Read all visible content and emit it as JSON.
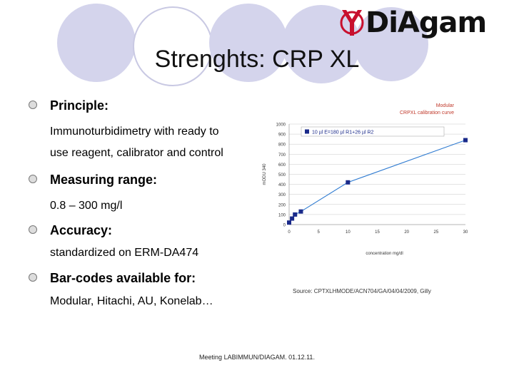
{
  "logo": {
    "text": "DiAgam",
    "icon": "diagam-y-logo-icon",
    "accent": "#c8102e"
  },
  "slide_title": "Strenghts: CRP XL",
  "bullets": [
    {
      "heading": "Principle:",
      "lines": [
        "Immunoturbidimetry with ready to",
        "use reagent, calibrator and control"
      ]
    },
    {
      "heading": "Measuring range:",
      "lines": [
        "0.8 – 300 mg/l"
      ]
    },
    {
      "heading": "Accuracy:",
      "lines": [
        "standardized on ERM-DA474"
      ]
    },
    {
      "heading": "Bar-codes available for:",
      "lines": [
        "Modular, Hitachi, AU, Konelab…"
      ]
    }
  ],
  "chart_data": {
    "type": "line",
    "title": "Modular",
    "subtitle": "CRPXL calibration curve",
    "xlabel": "concentration mg/dl",
    "ylabel": "mODU 340",
    "xlim": [
      0,
      30
    ],
    "ylim": [
      0,
      1000
    ],
    "x_ticks": [
      "0",
      "5",
      "10",
      "15",
      "20",
      "25",
      "30"
    ],
    "y_ticks": [
      "0",
      "100",
      "200",
      "300",
      "400",
      "500",
      "600",
      "700",
      "800",
      "900",
      "1000"
    ],
    "legend": "10 µl E=180 µl R1+26 µl R2",
    "legend_position": "top",
    "grid": true,
    "series": [
      {
        "name": "10 µl E=180 µl R1+26 µl R2",
        "color": "#1a2a8a",
        "x": [
          0,
          0.5,
          1,
          2,
          10,
          30
        ],
        "y": [
          20,
          60,
          100,
          130,
          420,
          840
        ]
      }
    ]
  },
  "source_text": "Source: CPTXLHMODE/ACN704/GA/04/04/2009, Gilly",
  "footer_text": "Meeting LABIMMUN/DIAGAM. 01.12.11."
}
